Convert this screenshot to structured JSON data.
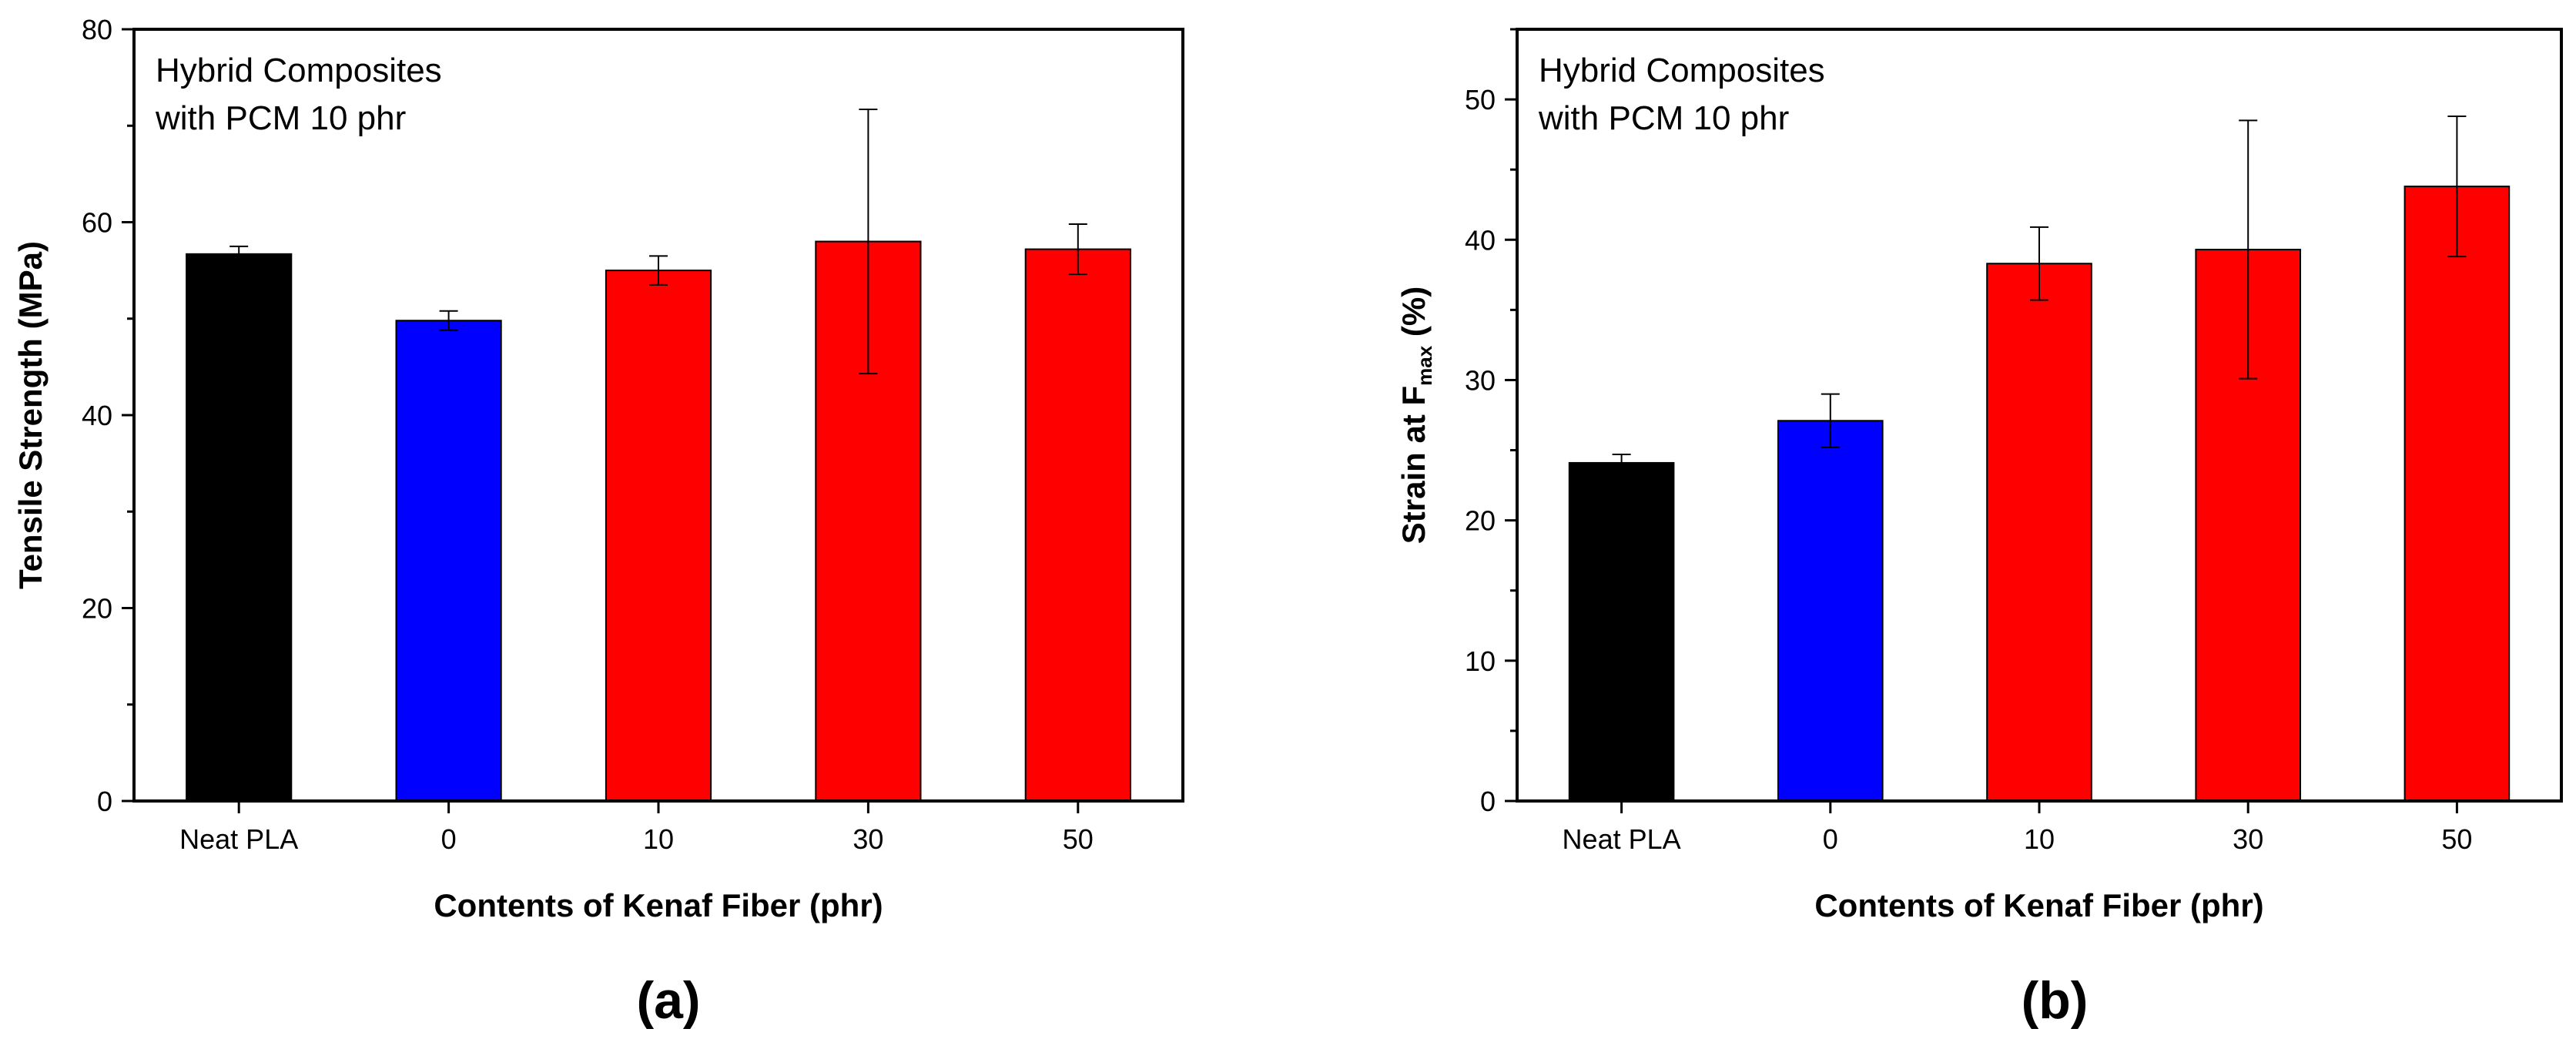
{
  "chart_data": [
    {
      "type": "bar",
      "panel_label": "(a)",
      "annotation_lines": [
        "Hybrid Composites",
        "with PCM 10 phr"
      ],
      "xlabel": "Contents of Kenaf Fiber (phr)",
      "ylabel": "Tensile Strength (MPa)",
      "ylim": [
        0,
        80
      ],
      "yticks": [
        0,
        20,
        40,
        60,
        80
      ],
      "categories": [
        "Neat PLA",
        "0",
        "10",
        "30",
        "50"
      ],
      "values": [
        56.7,
        49.8,
        55.0,
        58.0,
        57.2
      ],
      "errors": [
        0.8,
        1.0,
        1.5,
        13.7,
        2.6
      ],
      "colors": [
        "#000000",
        "#0000ff",
        "#ff0000",
        "#ff0000",
        "#ff0000"
      ],
      "grid": false
    },
    {
      "type": "bar",
      "panel_label": "(b)",
      "annotation_lines": [
        "Hybrid Composites",
        "with PCM 10 phr"
      ],
      "xlabel": "Contents of Kenaf Fiber (phr)",
      "ylabel_main": "Strain at F",
      "ylabel_sub": "max",
      "ylabel_unit": " (%)",
      "ylim": [
        0,
        55
      ],
      "yticks": [
        0,
        10,
        20,
        30,
        40,
        50
      ],
      "categories": [
        "Neat PLA",
        "0",
        "10",
        "30",
        "50"
      ],
      "values": [
        24.1,
        27.1,
        38.3,
        39.3,
        43.8
      ],
      "errors": [
        0.6,
        1.9,
        2.6,
        9.2,
        5.0
      ],
      "colors": [
        "#000000",
        "#0000ff",
        "#ff0000",
        "#ff0000",
        "#ff0000"
      ],
      "grid": false
    }
  ]
}
